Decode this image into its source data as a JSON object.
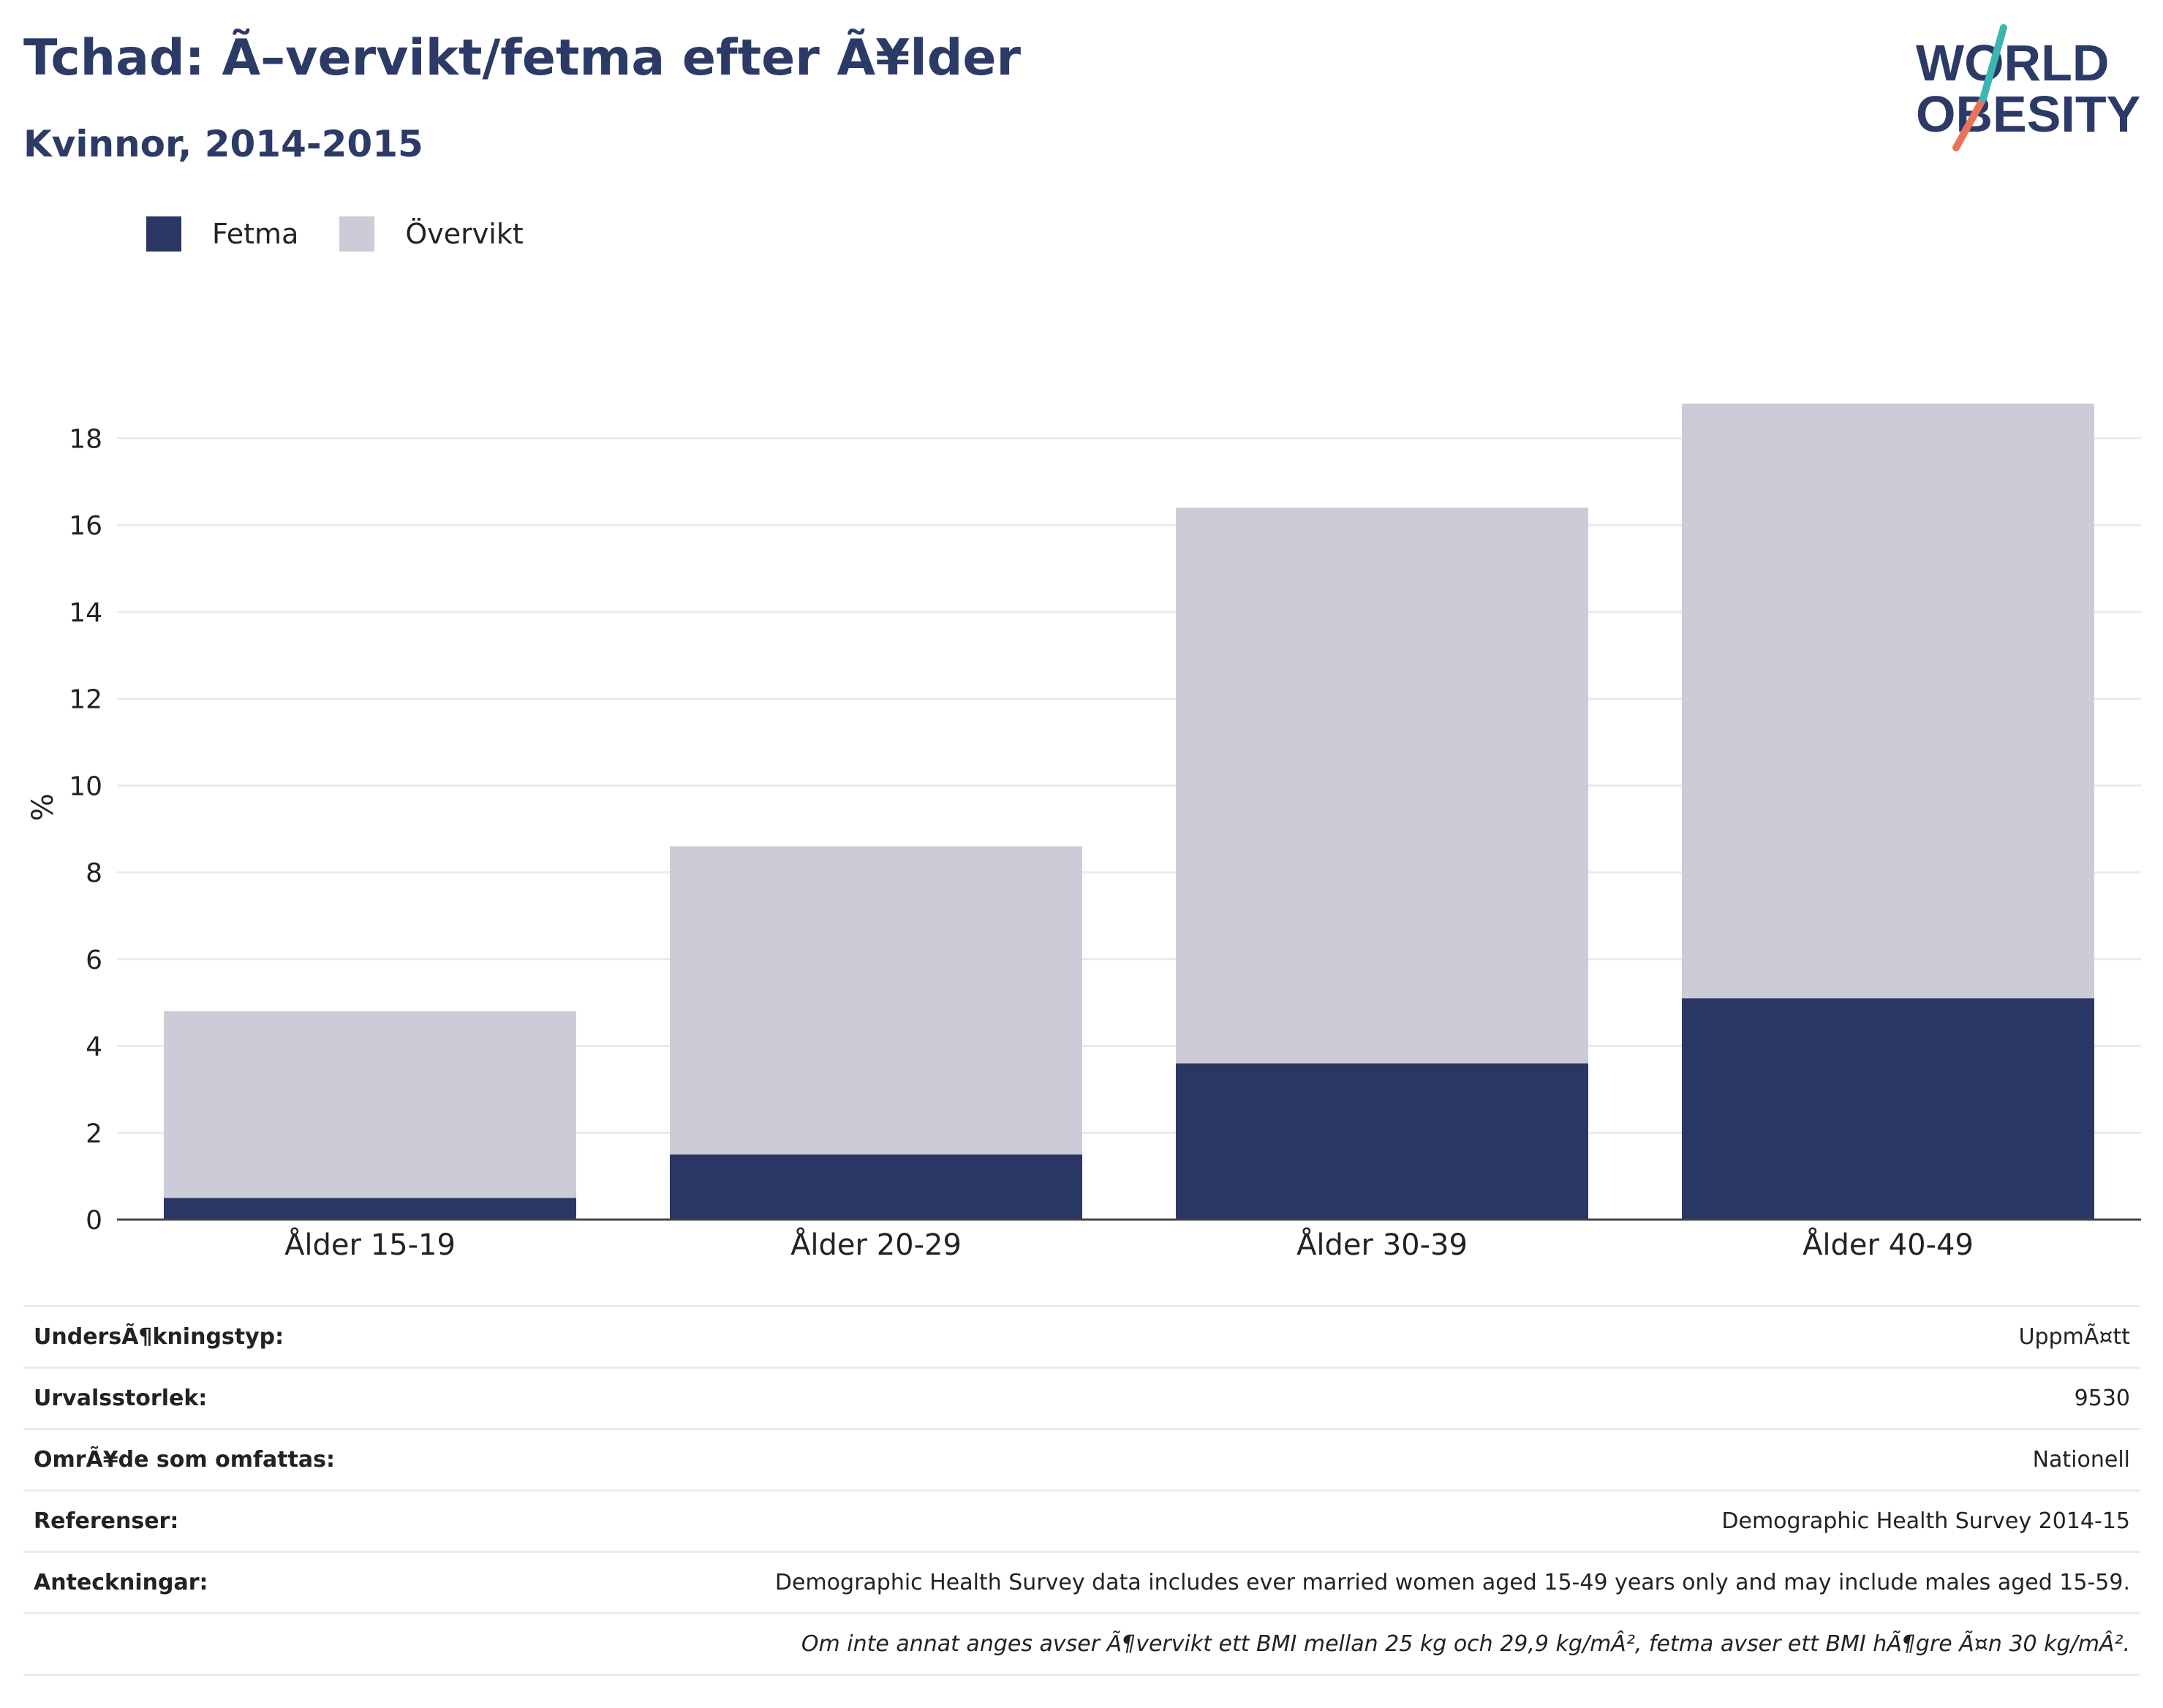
{
  "header": {
    "title": "Tchad: Ã–vervikt/fetma efter Ã¥lder",
    "subtitle": "Kvinnor, 2014-2015"
  },
  "logo": {
    "line1": "WORLD",
    "line2": "OBESITY",
    "icon": "world-obesity-logo"
  },
  "legend": [
    {
      "label": "Fetma",
      "color": "#2a3764"
    },
    {
      "label": "Övervikt",
      "color": "#cbccd8"
    }
  ],
  "chart_data": {
    "type": "bar",
    "stacked": true,
    "categories": [
      "Ålder 15-19",
      "Ålder 20-29",
      "Ålder 30-39",
      "Ålder 40-49"
    ],
    "series": [
      {
        "name": "Fetma",
        "values": [
          0.5,
          1.5,
          3.6,
          5.1
        ],
        "color": "#2a3764"
      },
      {
        "name": "Övervikt",
        "values": [
          4.3,
          7.1,
          12.8,
          13.7
        ],
        "color": "#cbccd8"
      }
    ],
    "totals": [
      4.8,
      8.6,
      16.4,
      18.8
    ],
    "ylabel": "%",
    "ylim": [
      0,
      19
    ],
    "yticks": [
      0,
      2,
      4,
      6,
      8,
      10,
      12,
      14,
      16,
      18
    ],
    "grid": true,
    "legend_position": "top-left"
  },
  "info_table": [
    {
      "key": "UndersÃ¶kningstyp:",
      "value": "UppmÃ¤tt"
    },
    {
      "key": "Urvalsstorlek:",
      "value": "9530"
    },
    {
      "key": "OmrÃ¥de som omfattas:",
      "value": "Nationell"
    },
    {
      "key": "Referenser:",
      "value": "Demographic Health Survey 2014-15"
    },
    {
      "key": "Anteckningar:",
      "value": "Demographic Health Survey data includes ever married women aged 15-49 years only and may include males aged 15-59."
    },
    {
      "key": "",
      "value": "Om inte annat anges avser Ã¶vervikt ett BMI mellan 25 kg och 29,9 kg/mÂ², fetma avser ett BMI hÃ¶gre Ã¤n 30 kg/mÂ²."
    }
  ]
}
